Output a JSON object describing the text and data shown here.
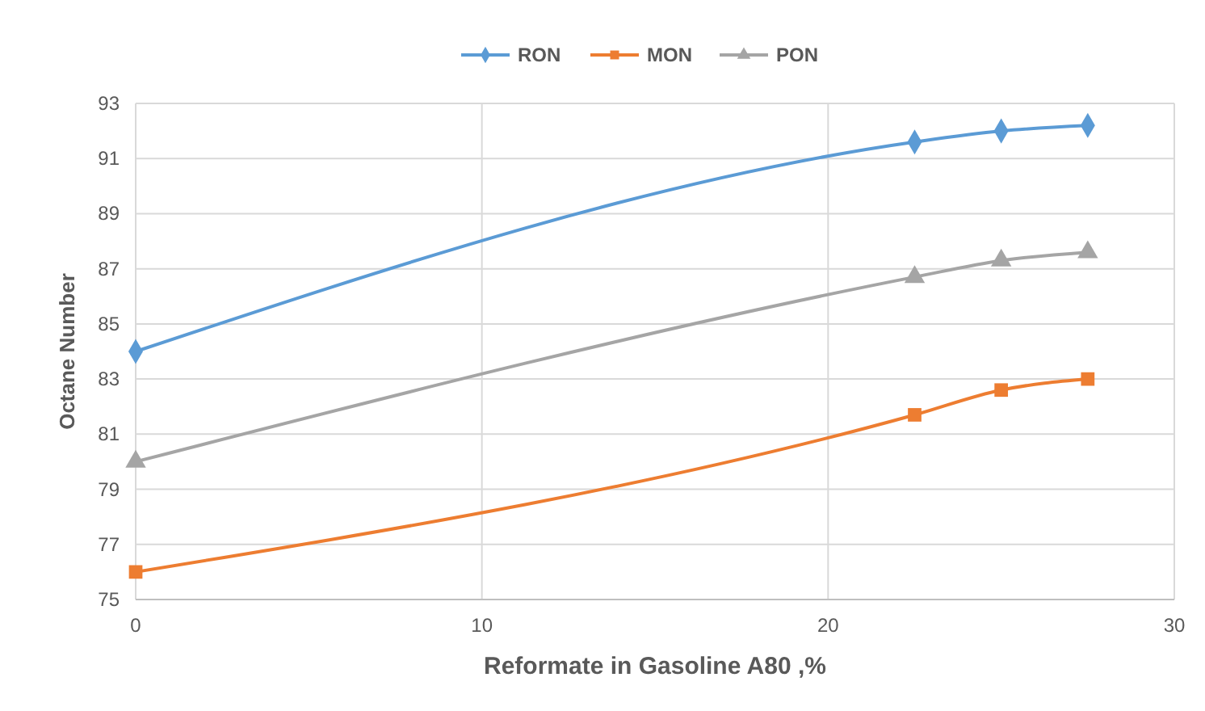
{
  "chart_data": {
    "type": "line",
    "xlabel": "Reformate in Gasoline A80 ,%",
    "ylabel": "Octane Number",
    "x": [
      0,
      22.5,
      25,
      27.5
    ],
    "series": [
      {
        "name": "RON",
        "color": "#5b9bd5",
        "marker": "diamond",
        "values": [
          84,
          91.6,
          92,
          92.2
        ]
      },
      {
        "name": "MON",
        "color": "#ed7d31",
        "marker": "square",
        "values": [
          76,
          81.7,
          82.6,
          83
        ]
      },
      {
        "name": "PON",
        "color": "#a5a5a5",
        "marker": "triangle",
        "values": [
          80,
          86.7,
          87.3,
          87.6
        ]
      }
    ],
    "xlim": [
      0,
      30
    ],
    "xticks": [
      0,
      10,
      20,
      30
    ],
    "ylim": [
      75,
      93
    ],
    "yticks": [
      75,
      77,
      79,
      81,
      83,
      85,
      87,
      89,
      91,
      93
    ],
    "grid": true,
    "legend": "top",
    "line_style": "solid"
  }
}
